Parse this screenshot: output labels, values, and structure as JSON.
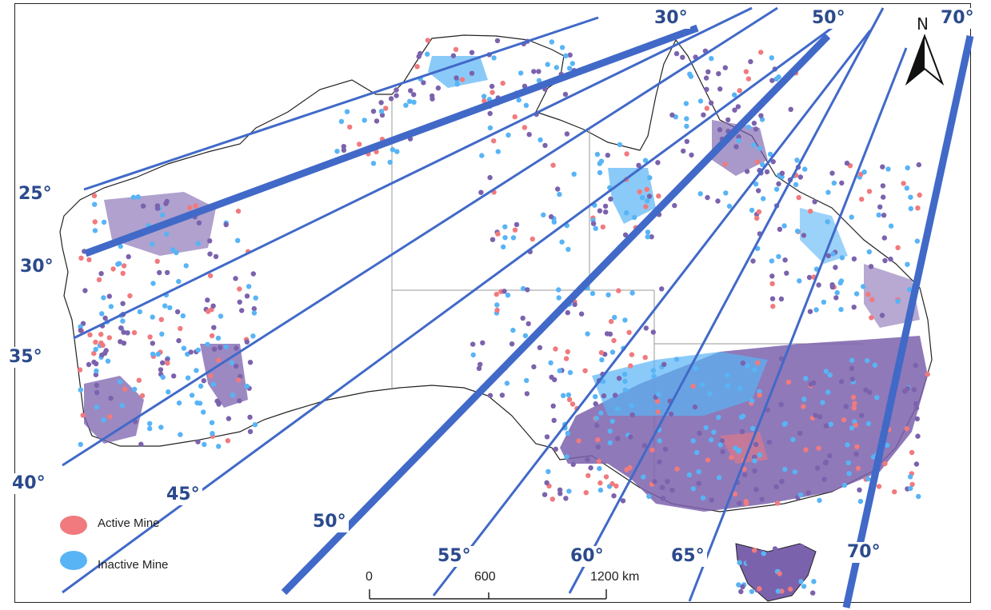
{
  "colors": {
    "active": "#f07a7e",
    "inactive": "#58b4f5",
    "overlap": "#7b62ad",
    "line": "#4169c8",
    "label": "#2b4a8c",
    "coast": "#222222"
  },
  "legend": {
    "active_label": "Active Mine",
    "inactive_label": "Inactive Mine"
  },
  "north_arrow": {
    "label": "N"
  },
  "scale_bar": {
    "labels": [
      "0",
      "600",
      "1200 km"
    ]
  },
  "angle_labels": {
    "top": [
      "30°",
      "50°",
      "70°"
    ],
    "left": [
      "25°",
      "30°",
      "35°",
      "40°"
    ],
    "bottom": [
      "45°",
      "50°",
      "55°",
      "60°",
      "65°",
      "70°"
    ]
  }
}
